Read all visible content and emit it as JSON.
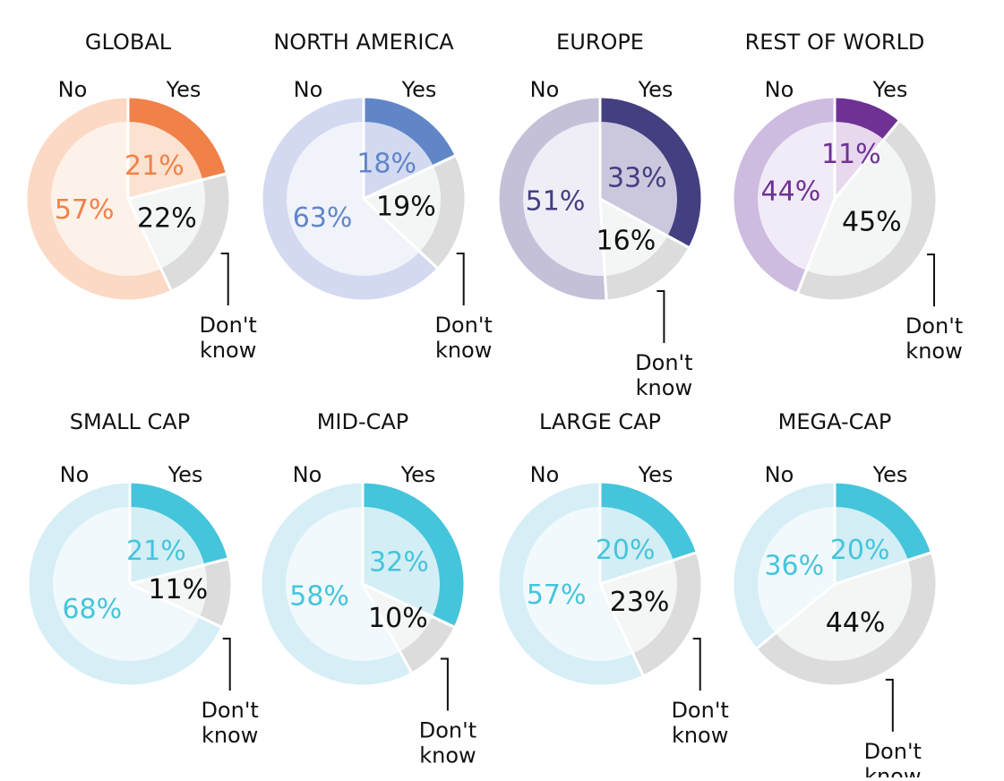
{
  "chart_data": [
    {
      "type": "pie",
      "title": "GLOBAL",
      "categories": [
        "Yes",
        "Don't know",
        "No"
      ],
      "values": [
        21,
        22,
        57
      ],
      "value_labels": [
        "21%",
        "22%",
        "57%"
      ],
      "labels": {
        "yes": "Yes",
        "no": "No",
        "dk_line1": "Don't",
        "dk_line2": "know"
      },
      "colors": {
        "yes_outer": "#f08148",
        "yes_inner": "#fbe2d1",
        "yes_text": "#f08148",
        "no_outer": "#fbd9c4",
        "no_inner": "#fdf2ea",
        "no_text": "#f08148"
      }
    },
    {
      "type": "pie",
      "title": "NORTH AMERICA",
      "categories": [
        "Yes",
        "Don't know",
        "No"
      ],
      "values": [
        18,
        19,
        63
      ],
      "value_labels": [
        "18%",
        "19%",
        "63%"
      ],
      "labels": {
        "yes": "Yes",
        "no": "No",
        "dk_line1": "Don't",
        "dk_line2": "know"
      },
      "colors": {
        "yes_outer": "#6186c7",
        "yes_inner": "#d3d9f0",
        "yes_text": "#6186c7",
        "no_outer": "#d3d9f0",
        "no_inner": "#f1f3fb",
        "no_text": "#6186c7"
      }
    },
    {
      "type": "pie",
      "title": "EUROPE",
      "categories": [
        "Yes",
        "Don't know",
        "No"
      ],
      "values": [
        33,
        16,
        51
      ],
      "value_labels": [
        "33%",
        "16%",
        "51%"
      ],
      "labels": {
        "yes": "Yes",
        "no": "No",
        "dk_line1": "Don't",
        "dk_line2": "know"
      },
      "colors": {
        "yes_outer": "#433f80",
        "yes_inner": "#cbc7dd",
        "yes_text": "#433f80",
        "no_outer": "#c4c0d8",
        "no_inner": "#efedf5",
        "no_text": "#433f80"
      }
    },
    {
      "type": "pie",
      "title": "REST OF WORLD",
      "categories": [
        "Yes",
        "Don't know",
        "No"
      ],
      "values": [
        11,
        45,
        44
      ],
      "value_labels": [
        "11%",
        "45%",
        "44%"
      ],
      "labels": {
        "yes": "Yes",
        "no": "No",
        "dk_line1": "Don't",
        "dk_line2": "know"
      },
      "colors": {
        "yes_outer": "#6f3194",
        "yes_inner": "#e7d8ee",
        "yes_text": "#6f3194",
        "no_outer": "#cdbcdf",
        "no_inner": "#f1ebf7",
        "no_text": "#6f3194"
      }
    },
    {
      "type": "pie",
      "title": "SMALL CAP",
      "categories": [
        "Yes",
        "Don't know",
        "No"
      ],
      "values": [
        21,
        11,
        68
      ],
      "value_labels": [
        "21%",
        "11%",
        "68%"
      ],
      "labels": {
        "yes": "Yes",
        "no": "No",
        "dk_line1": "Don't",
        "dk_line2": "know"
      },
      "colors": {
        "yes_outer": "#45c5db",
        "yes_inner": "#d3eef5",
        "yes_text": "#45c5db",
        "no_outer": "#d6eef6",
        "no_inner": "#f1f9fc",
        "no_text": "#45c5db"
      }
    },
    {
      "type": "pie",
      "title": "MID-CAP",
      "categories": [
        "Yes",
        "Don't know",
        "No"
      ],
      "values": [
        32,
        10,
        58
      ],
      "value_labels": [
        "32%",
        "10%",
        "58%"
      ],
      "labels": {
        "yes": "Yes",
        "no": "No",
        "dk_line1": "Don't",
        "dk_line2": "know"
      },
      "colors": {
        "yes_outer": "#45c5db",
        "yes_inner": "#d3eef5",
        "yes_text": "#45c5db",
        "no_outer": "#d6eef6",
        "no_inner": "#f1f9fc",
        "no_text": "#45c5db"
      }
    },
    {
      "type": "pie",
      "title": "LARGE CAP",
      "categories": [
        "Yes",
        "Don't know",
        "No"
      ],
      "values": [
        20,
        23,
        57
      ],
      "value_labels": [
        "20%",
        "23%",
        "57%"
      ],
      "labels": {
        "yes": "Yes",
        "no": "No",
        "dk_line1": "Don't",
        "dk_line2": "know"
      },
      "colors": {
        "yes_outer": "#45c5db",
        "yes_inner": "#d3eef5",
        "yes_text": "#45c5db",
        "no_outer": "#d6eef6",
        "no_inner": "#f1f9fc",
        "no_text": "#45c5db"
      }
    },
    {
      "type": "pie",
      "title": "MEGA-CAP",
      "categories": [
        "Yes",
        "Don't know",
        "No"
      ],
      "values": [
        20,
        44,
        36
      ],
      "value_labels": [
        "20%",
        "44%",
        "36%"
      ],
      "labels": {
        "yes": "Yes",
        "no": "No",
        "dk_line1": "Don't",
        "dk_line2": "know"
      },
      "colors": {
        "yes_outer": "#45c5db",
        "yes_inner": "#d3eef5",
        "yes_text": "#45c5db",
        "no_outer": "#d6eef6",
        "no_inner": "#f1f9fc",
        "no_text": "#45c5db"
      }
    }
  ],
  "dont_know_colors": {
    "outer": "#dcdcdd",
    "inner": "#f4f6f6",
    "text": "#111111"
  },
  "text_color": "#111111"
}
